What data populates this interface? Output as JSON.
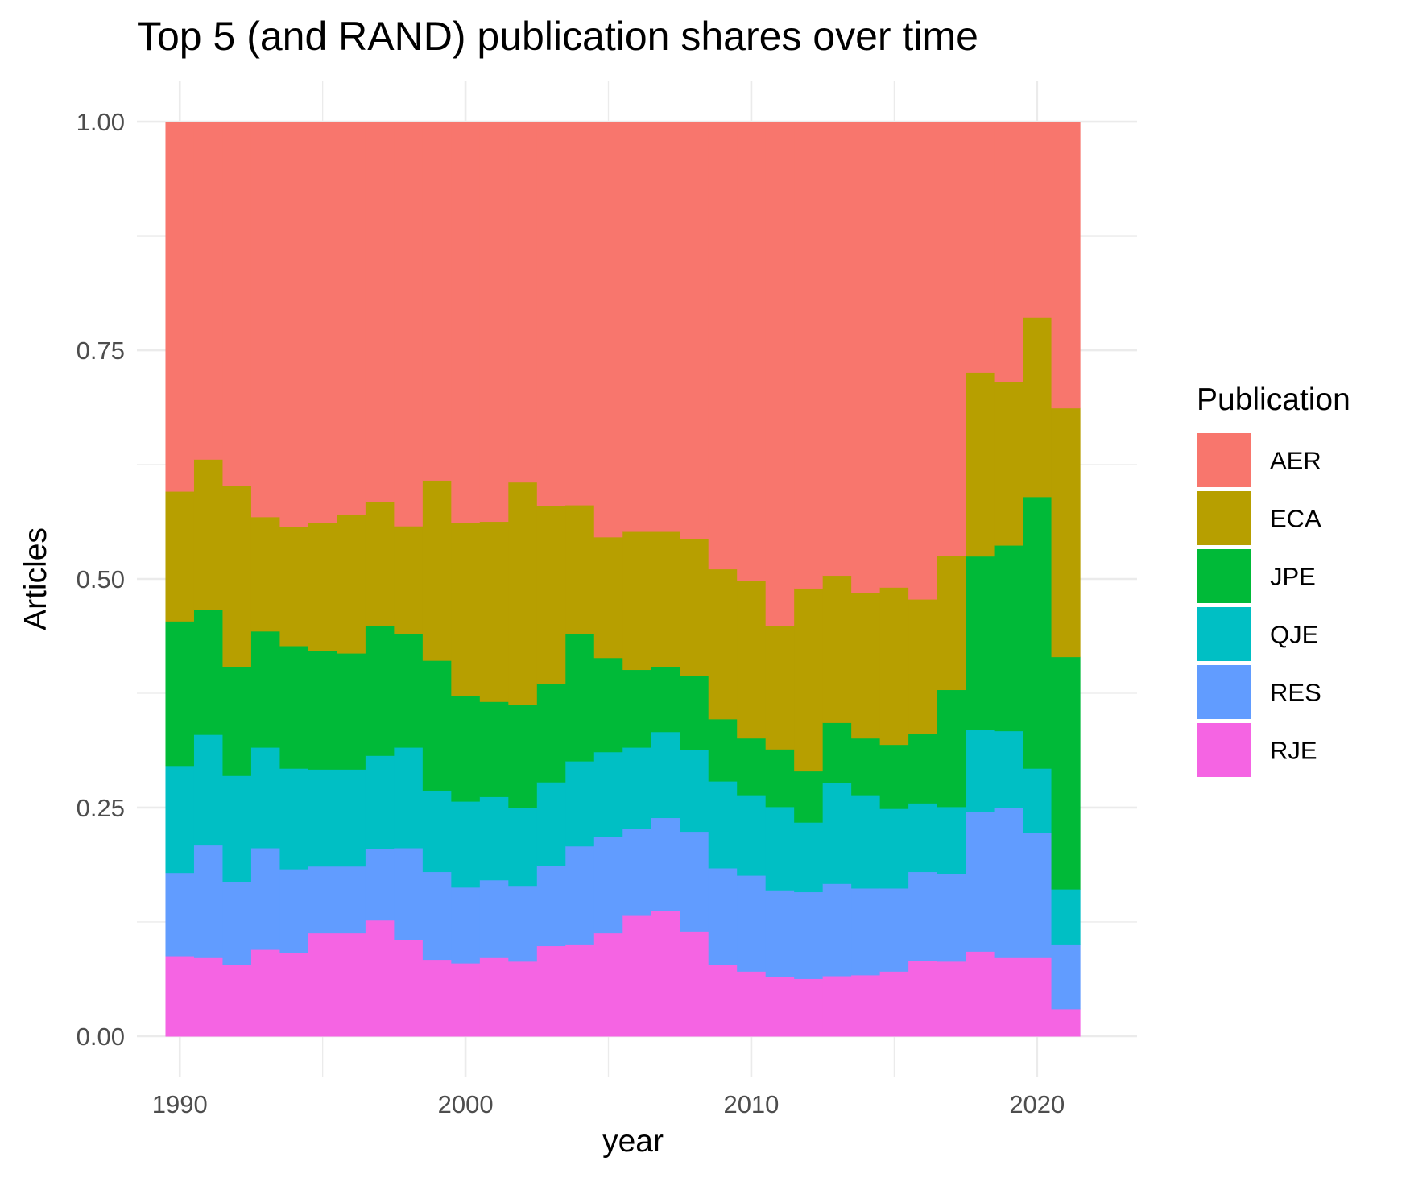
{
  "chart_data": {
    "type": "area",
    "title": "Top 5 (and RAND) publication shares over time",
    "xlabel": "year",
    "ylabel": "Articles",
    "xlim": [
      1988.5,
      2023.5
    ],
    "ylim": [
      -0.045,
      1.045
    ],
    "x_ticks": [
      1990,
      2000,
      2010,
      2020
    ],
    "x_tick_labels": [
      "1990",
      "2000",
      "2010",
      "2020"
    ],
    "y_ticks": [
      0,
      0.25,
      0.5,
      0.75,
      1
    ],
    "y_tick_labels": [
      "0.00",
      "0.25",
      "0.50",
      "0.75",
      "1.00"
    ],
    "grid": true,
    "legend": {
      "title": "Publication",
      "position": "right"
    },
    "x": [
      1990,
      1991,
      1992,
      1993,
      1994,
      1995,
      1996,
      1997,
      1998,
      1999,
      2000,
      2001,
      2002,
      2003,
      2004,
      2005,
      2006,
      2007,
      2008,
      2009,
      2010,
      2011,
      2012,
      2013,
      2014,
      2015,
      2016,
      2017,
      2018,
      2019,
      2020,
      2021
    ],
    "series": [
      {
        "name": "RJE",
        "color": "#F564E3",
        "values": [
          0.088,
          0.086,
          0.078,
          0.095,
          0.092,
          0.113,
          0.113,
          0.127,
          0.106,
          0.084,
          0.08,
          0.086,
          0.082,
          0.099,
          0.1,
          0.113,
          0.132,
          0.137,
          0.115,
          0.078,
          0.071,
          0.065,
          0.063,
          0.066,
          0.067,
          0.071,
          0.083,
          0.082,
          0.093,
          0.086,
          0.086,
          0.03
        ]
      },
      {
        "name": "RES",
        "color": "#619CFF",
        "values": [
          0.091,
          0.123,
          0.091,
          0.111,
          0.091,
          0.073,
          0.073,
          0.078,
          0.1,
          0.096,
          0.083,
          0.085,
          0.082,
          0.088,
          0.108,
          0.105,
          0.095,
          0.102,
          0.109,
          0.106,
          0.105,
          0.095,
          0.095,
          0.101,
          0.095,
          0.091,
          0.097,
          0.096,
          0.153,
          0.164,
          0.137,
          0.07
        ]
      },
      {
        "name": "QJE",
        "color": "#00BFC4",
        "values": [
          0.117,
          0.121,
          0.116,
          0.11,
          0.11,
          0.106,
          0.106,
          0.102,
          0.11,
          0.089,
          0.094,
          0.091,
          0.086,
          0.091,
          0.093,
          0.093,
          0.089,
          0.094,
          0.089,
          0.095,
          0.088,
          0.091,
          0.076,
          0.11,
          0.102,
          0.087,
          0.075,
          0.073,
          0.089,
          0.084,
          0.07,
          0.061
        ]
      },
      {
        "name": "JPE",
        "color": "#00BA38",
        "values": [
          0.158,
          0.137,
          0.119,
          0.127,
          0.134,
          0.13,
          0.127,
          0.142,
          0.124,
          0.142,
          0.115,
          0.104,
          0.113,
          0.108,
          0.139,
          0.103,
          0.085,
          0.071,
          0.081,
          0.068,
          0.062,
          0.063,
          0.056,
          0.066,
          0.062,
          0.07,
          0.076,
          0.128,
          0.19,
          0.203,
          0.297,
          0.254
        ]
      },
      {
        "name": "ECA",
        "color": "#B79F00",
        "values": [
          0.142,
          0.164,
          0.198,
          0.125,
          0.13,
          0.14,
          0.152,
          0.136,
          0.118,
          0.197,
          0.19,
          0.197,
          0.243,
          0.194,
          0.141,
          0.132,
          0.151,
          0.148,
          0.15,
          0.164,
          0.172,
          0.135,
          0.2,
          0.161,
          0.159,
          0.172,
          0.147,
          0.147,
          0.201,
          0.179,
          0.196,
          0.272
        ]
      },
      {
        "name": "AER",
        "color": "#F8766D",
        "values": [
          0.404,
          0.369,
          0.398,
          0.432,
          0.443,
          0.438,
          0.429,
          0.415,
          0.442,
          0.392,
          0.438,
          0.437,
          0.394,
          0.42,
          0.419,
          0.454,
          0.448,
          0.448,
          0.456,
          0.489,
          0.502,
          0.551,
          0.51,
          0.496,
          0.515,
          0.509,
          0.522,
          0.474,
          0.274,
          0.284,
          0.214,
          0.313
        ]
      }
    ]
  }
}
